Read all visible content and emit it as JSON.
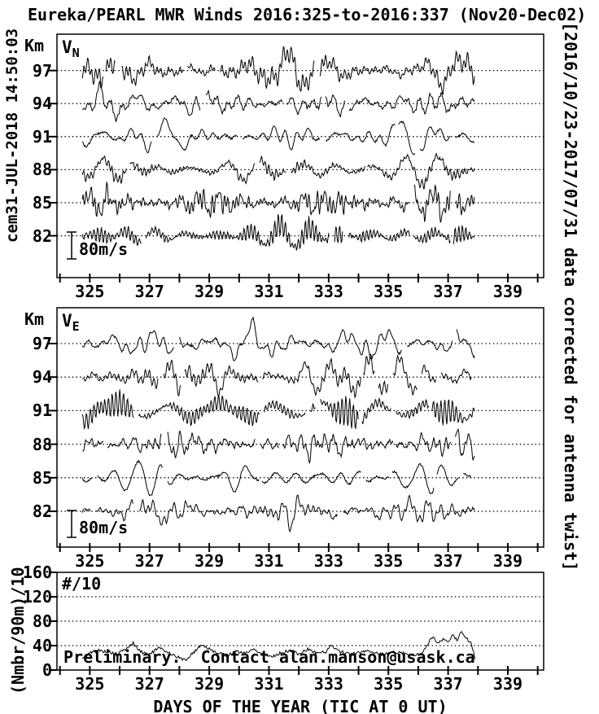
{
  "title": "Eureka/PEARL MWR Winds 2016:325-to-2016:337 (Nov20-Dec02)",
  "left_note": "cem31-JUL-2018 14:50:03",
  "right_note": "[2016/10/23-2017/07/31 data corrected for antenna twist]",
  "xlabel": "DAYS OF THE YEAR (TIC AT 0 UT)",
  "preliminary_note": "Preliminary.  Contact alan.manson@usask.ca",
  "line_color": "#000000",
  "background_color": "#ffffff",
  "chart_data": [
    {
      "id": "vn",
      "type": "line",
      "panel_label_main": "V",
      "panel_label_sub": "N",
      "ylabel": "Km",
      "yticks": [
        97,
        94,
        91,
        88,
        85,
        82
      ],
      "xticks": [
        325,
        327,
        329,
        331,
        333,
        335,
        337,
        339
      ],
      "xminor_every_days": 1,
      "xlim_days": [
        323.9,
        340.2
      ],
      "ylim_km": [
        78.2,
        100.3
      ],
      "grid": "dotted horizontal line at each altitude tick",
      "legend": "none",
      "scale_bar": {
        "label": "80m/s",
        "value_mps": 80
      },
      "data_day_range": [
        324.75,
        337.9
      ],
      "series": [
        {
          "name": "VN 97 km",
          "baseline_km": 97,
          "seed": 3,
          "peak_mps": 72
        },
        {
          "name": "VN 94 km",
          "baseline_km": 94,
          "seed": 7,
          "peak_mps": 64
        },
        {
          "name": "VN 91 km",
          "baseline_km": 91,
          "seed": 12,
          "peak_mps": 56
        },
        {
          "name": "VN 88 km",
          "baseline_km": 88,
          "seed": 19,
          "peak_mps": 58
        },
        {
          "name": "VN 85 km",
          "baseline_km": 85,
          "seed": 23,
          "peak_mps": 60
        },
        {
          "name": "VN 82 km",
          "baseline_km": 82,
          "seed": 31,
          "peak_mps": 64
        }
      ]
    },
    {
      "id": "ve",
      "type": "line",
      "panel_label_main": "V",
      "panel_label_sub": "E",
      "ylabel": "Km",
      "yticks": [
        97,
        94,
        91,
        88,
        85,
        82
      ],
      "xticks": [
        325,
        327,
        329,
        331,
        333,
        335,
        337,
        339
      ],
      "xminor_every_days": 1,
      "xlim_days": [
        323.9,
        340.2
      ],
      "ylim_km": [
        78.8,
        100.2
      ],
      "grid": "dotted horizontal line at each altitude tick",
      "legend": "none",
      "scale_bar": {
        "label": "80m/s",
        "value_mps": 80
      },
      "data_day_range": [
        324.75,
        337.9
      ],
      "series": [
        {
          "name": "VE 97 km",
          "baseline_km": 97,
          "seed": 41,
          "peak_mps": 76
        },
        {
          "name": "VE 94 km",
          "baseline_km": 94,
          "seed": 47,
          "peak_mps": 70
        },
        {
          "name": "VE 91 km",
          "baseline_km": 91,
          "seed": 53,
          "peak_mps": 62
        },
        {
          "name": "VE 88 km",
          "baseline_km": 88,
          "seed": 59,
          "peak_mps": 56
        },
        {
          "name": "VE 85 km",
          "baseline_km": 85,
          "seed": 61,
          "peak_mps": 54
        },
        {
          "name": "VE 82 km",
          "baseline_km": 82,
          "seed": 67,
          "peak_mps": 60
        }
      ]
    },
    {
      "id": "counts",
      "type": "line",
      "panel_label": "#/10",
      "ylabel": "(Nmbr/90m)/10",
      "yticks": [
        160,
        120,
        80,
        40,
        0
      ],
      "ylim": [
        0,
        160
      ],
      "xticks": [
        325,
        327,
        329,
        331,
        333,
        335,
        337,
        339
      ],
      "xminor_every_days": 1,
      "xlim_days": [
        323.9,
        340.2
      ],
      "grid": "dotted horizontal lines at 40, 80, 120",
      "legend": "none",
      "series_name": "#/10",
      "noise_seed": 5,
      "points": [
        [
          324.75,
          18
        ],
        [
          325.0,
          28
        ],
        [
          325.3,
          32
        ],
        [
          325.6,
          30
        ],
        [
          325.9,
          26
        ],
        [
          326.2,
          34
        ],
        [
          326.45,
          44
        ],
        [
          326.7,
          30
        ],
        [
          327.0,
          26
        ],
        [
          327.3,
          36
        ],
        [
          327.6,
          30
        ],
        [
          327.9,
          22
        ],
        [
          328.2,
          16
        ],
        [
          328.5,
          30
        ],
        [
          328.75,
          42
        ],
        [
          329.0,
          34
        ],
        [
          329.3,
          28
        ],
        [
          329.6,
          24
        ],
        [
          329.9,
          30
        ],
        [
          330.2,
          28
        ],
        [
          330.5,
          34
        ],
        [
          330.8,
          26
        ],
        [
          331.1,
          22
        ],
        [
          331.4,
          28
        ],
        [
          331.7,
          32
        ],
        [
          332.0,
          26
        ],
        [
          332.3,
          34
        ],
        [
          332.6,
          28
        ],
        [
          332.9,
          30
        ],
        [
          333.1,
          40
        ],
        [
          333.4,
          30
        ],
        [
          333.7,
          26
        ],
        [
          334.0,
          28
        ],
        [
          334.3,
          32
        ],
        [
          334.6,
          28
        ],
        [
          334.9,
          26
        ],
        [
          335.2,
          30
        ],
        [
          335.5,
          28
        ],
        [
          335.8,
          24
        ],
        [
          336.1,
          26
        ],
        [
          336.35,
          46
        ],
        [
          336.5,
          54
        ],
        [
          336.65,
          44
        ],
        [
          336.8,
          50
        ],
        [
          337.0,
          46
        ],
        [
          337.15,
          56
        ],
        [
          337.3,
          50
        ],
        [
          337.45,
          62
        ],
        [
          337.6,
          52
        ],
        [
          337.75,
          46
        ],
        [
          337.85,
          30
        ],
        [
          337.9,
          18
        ]
      ]
    }
  ]
}
